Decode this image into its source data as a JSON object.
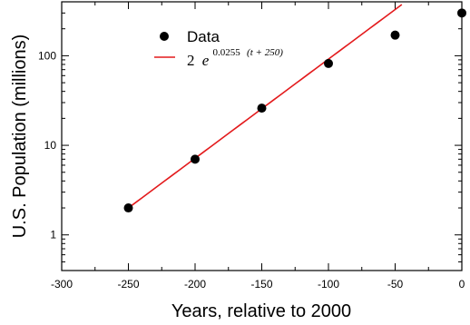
{
  "chart_data": {
    "type": "scatter",
    "xlabel": "Years, relative to 2000",
    "ylabel": "U.S. Population (millions)",
    "xlim": [
      -300,
      0
    ],
    "ylim": [
      0.4,
      400
    ],
    "yscale": "log",
    "x_ticks": [
      "-300",
      "-250",
      "-200",
      "-150",
      "-100",
      "-50",
      "0"
    ],
    "x_tick_values": [
      -300,
      -250,
      -200,
      -150,
      -100,
      -50,
      0
    ],
    "y_ticks": [
      "1",
      "10",
      "100"
    ],
    "y_tick_values": [
      1,
      10,
      100
    ],
    "grid": false,
    "legend_position": "top-left",
    "series": [
      {
        "name": "Data",
        "kind": "points",
        "color": "#000000",
        "x": [
          -250,
          -200,
          -150,
          -100,
          -50,
          0
        ],
        "y": [
          2,
          7,
          26,
          82,
          170,
          300
        ]
      },
      {
        "kind": "line",
        "color": "#e31a1c",
        "fit": {
          "a": 2,
          "b": 0.0255,
          "c": 250
        },
        "x_range": [
          -250,
          -45
        ]
      }
    ],
    "legend": {
      "data_label": "Data",
      "fit_label": {
        "coef": "2",
        "base": "e",
        "exponent": "0.0255",
        "exponent_term": "(t + 250)"
      }
    }
  }
}
